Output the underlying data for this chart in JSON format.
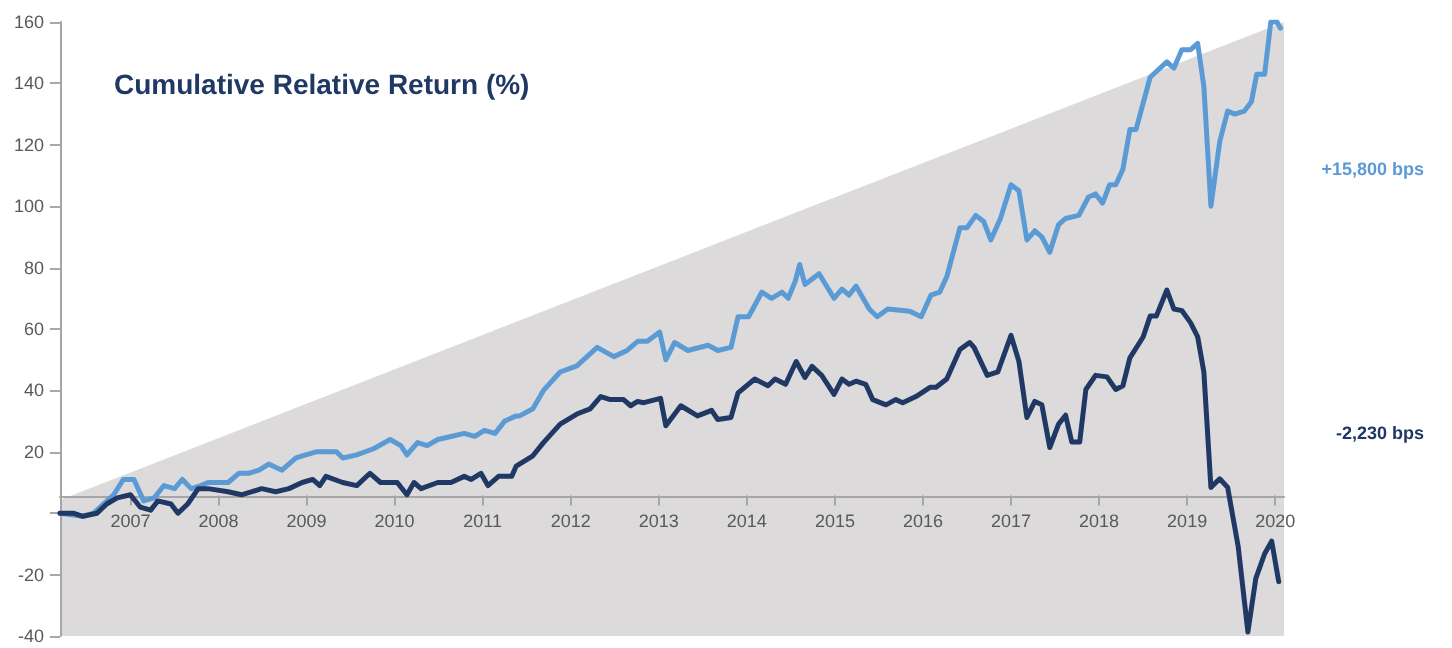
{
  "chart_data": {
    "type": "line",
    "title": "Cumulative Relative Return (%)",
    "xlim": [
      2006.2,
      2020.1
    ],
    "xticks": [
      2007,
      2008,
      2009,
      2010,
      2011,
      2012,
      2013,
      2014,
      2015,
      2016,
      2017,
      2018,
      2019,
      2020
    ],
    "ylim": [
      -40,
      160
    ],
    "yticks": [
      {
        "value": -40,
        "label": "-40"
      },
      {
        "value": -20,
        "label": "-20"
      },
      {
        "value": 0,
        "label": null
      },
      20,
      40,
      60,
      80,
      100,
      120,
      140,
      160
    ],
    "line_style": "solid",
    "annotations": [
      "+15,800 bps",
      "-2,230 bps"
    ],
    "series": [
      {
        "color": "#5b9bd5",
        "x": [
          2006.2,
          2006.46,
          2006.58,
          2006.81,
          2006.92,
          2007.04,
          2007.15,
          2007.27,
          2007.38,
          2007.5,
          2007.59,
          2007.69,
          2007.8,
          2007.88,
          2007.98,
          2008.11,
          2008.23,
          2008.34,
          2008.46,
          2008.57,
          2008.72,
          2008.88,
          2008.99,
          2009.11,
          2009.34,
          2009.41,
          2009.57,
          2009.76,
          2009.95,
          2010.07,
          2010.14,
          2010.26,
          2010.37,
          2010.49,
          2010.64,
          2010.79,
          2010.91,
          2011.02,
          2011.14,
          2011.25,
          2011.38,
          2011.42,
          2011.57,
          2011.69,
          2011.88,
          2012.07,
          2012.3,
          2012.49,
          2012.64,
          2012.76,
          2012.87,
          2013.01,
          2013.08,
          2013.18,
          2013.33,
          2013.56,
          2013.67,
          2013.82,
          2013.9,
          2014.02,
          2014.17,
          2014.28,
          2014.4,
          2014.47,
          2014.55,
          2014.6,
          2014.66,
          2014.82,
          2014.99,
          2015.08,
          2015.16,
          2015.24,
          2015.39,
          2015.48,
          2015.6,
          2015.85,
          2015.98,
          2016.09,
          2016.19,
          2016.27,
          2016.42,
          2016.5,
          2016.6,
          2016.69,
          2016.77,
          2016.88,
          2017.0,
          2017.09,
          2017.18,
          2017.27,
          2017.35,
          2017.44,
          2017.54,
          2017.62,
          2017.77,
          2017.88,
          2017.96,
          2018.04,
          2018.12,
          2018.19,
          2018.27,
          2018.35,
          2018.42,
          2018.58,
          2018.77,
          2018.85,
          2018.94,
          2019.04,
          2019.12,
          2019.19,
          2019.27,
          2019.37,
          2019.46,
          2019.54,
          2019.65,
          2019.73,
          2019.79,
          2019.88,
          2019.95,
          2020.02,
          2020.06
        ],
        "values": [
          0,
          -1,
          0,
          6,
          11,
          11,
          4,
          5,
          9,
          8,
          11,
          8,
          9,
          10,
          10,
          10,
          13,
          13,
          14,
          16,
          14,
          18,
          19,
          20,
          20,
          18,
          19,
          21,
          24,
          22,
          19,
          23,
          22,
          24,
          25,
          26,
          25,
          27,
          26,
          30,
          31.7,
          31.7,
          34,
          40,
          46,
          48,
          54,
          51,
          53,
          56,
          56,
          59,
          50,
          55.6,
          53,
          54.7,
          53,
          54,
          64,
          64,
          72,
          70,
          72,
          70,
          75.6,
          81,
          74.5,
          78,
          70,
          73,
          71,
          74,
          66.5,
          64,
          66.5,
          65.8,
          64,
          71,
          72,
          77,
          93,
          93,
          97,
          95,
          89,
          96,
          107,
          105,
          89,
          92,
          90,
          85,
          94,
          96,
          97,
          103,
          104,
          101,
          107,
          107,
          112,
          125,
          125,
          142,
          147,
          145,
          151,
          151,
          153,
          139,
          100,
          121,
          131,
          130,
          131,
          134,
          143,
          143,
          160,
          160,
          158
        ]
      },
      {
        "color": "#1f3864",
        "x": [
          2006.2,
          2006.35,
          2006.46,
          2006.62,
          2006.73,
          2006.85,
          2007.0,
          2007.11,
          2007.23,
          2007.31,
          2007.46,
          2007.54,
          2007.65,
          2007.77,
          2007.88,
          2008.11,
          2008.26,
          2008.38,
          2008.49,
          2008.65,
          2008.8,
          2008.95,
          2009.07,
          2009.15,
          2009.22,
          2009.41,
          2009.57,
          2009.72,
          2009.84,
          2010.03,
          2010.14,
          2010.22,
          2010.3,
          2010.49,
          2010.64,
          2010.79,
          2010.87,
          2010.98,
          2011.06,
          2011.18,
          2011.33,
          2011.38,
          2011.57,
          2011.69,
          2011.88,
          2012.07,
          2012.22,
          2012.34,
          2012.45,
          2012.6,
          2012.68,
          2012.76,
          2012.83,
          2013.02,
          2013.08,
          2013.25,
          2013.44,
          2013.6,
          2013.67,
          2013.82,
          2013.9,
          2014.09,
          2014.24,
          2014.32,
          2014.44,
          2014.56,
          2014.66,
          2014.74,
          2014.85,
          2014.99,
          2015.08,
          2015.16,
          2015.24,
          2015.35,
          2015.43,
          2015.58,
          2015.69,
          2015.77,
          2015.92,
          2016.08,
          2016.15,
          2016.27,
          2016.42,
          2016.53,
          2016.58,
          2016.73,
          2016.85,
          2017.0,
          2017.09,
          2017.18,
          2017.27,
          2017.35,
          2017.44,
          2017.54,
          2017.62,
          2017.69,
          2017.78,
          2017.85,
          2017.96,
          2018.09,
          2018.19,
          2018.27,
          2018.35,
          2018.5,
          2018.58,
          2018.65,
          2018.77,
          2018.85,
          2018.94,
          2019.04,
          2019.12,
          2019.19,
          2019.27,
          2019.37,
          2019.46,
          2019.58,
          2019.69,
          2019.78,
          2019.88,
          2019.96,
          2020.04
        ],
        "values": [
          0,
          0,
          -1,
          0,
          3,
          5,
          6,
          2,
          1,
          4,
          3,
          0,
          3,
          8,
          8,
          7,
          6,
          7,
          8,
          7,
          8,
          10,
          11,
          9,
          12,
          10,
          9,
          13,
          10,
          10,
          6,
          10,
          8,
          10,
          10,
          12,
          11,
          13,
          9,
          12,
          12,
          15.3,
          18.7,
          23,
          29,
          32.3,
          34,
          38,
          37,
          37,
          35,
          36.4,
          36,
          37.4,
          28.5,
          35,
          31.7,
          33.5,
          30.5,
          31.2,
          39.2,
          43.7,
          41.5,
          43.7,
          42,
          49.4,
          44.2,
          47.8,
          44.9,
          38.7,
          43.7,
          42,
          43,
          42,
          37,
          35.3,
          37,
          36,
          38,
          41,
          41,
          43.7,
          53.3,
          55.6,
          54,
          44.9,
          46,
          57.9,
          49.4,
          31.2,
          36.4,
          35.3,
          21.4,
          29,
          31.9,
          23.2,
          23.2,
          40.3,
          44.9,
          44.4,
          40.3,
          41.5,
          50.6,
          57.4,
          64.2,
          64.2,
          72.7,
          66.5,
          66,
          62,
          57.4,
          46,
          8.4,
          11.2,
          8.4,
          -10.9,
          -38.7,
          -21.2,
          -13.2,
          -9.1,
          -22.3
        ]
      }
    ]
  }
}
